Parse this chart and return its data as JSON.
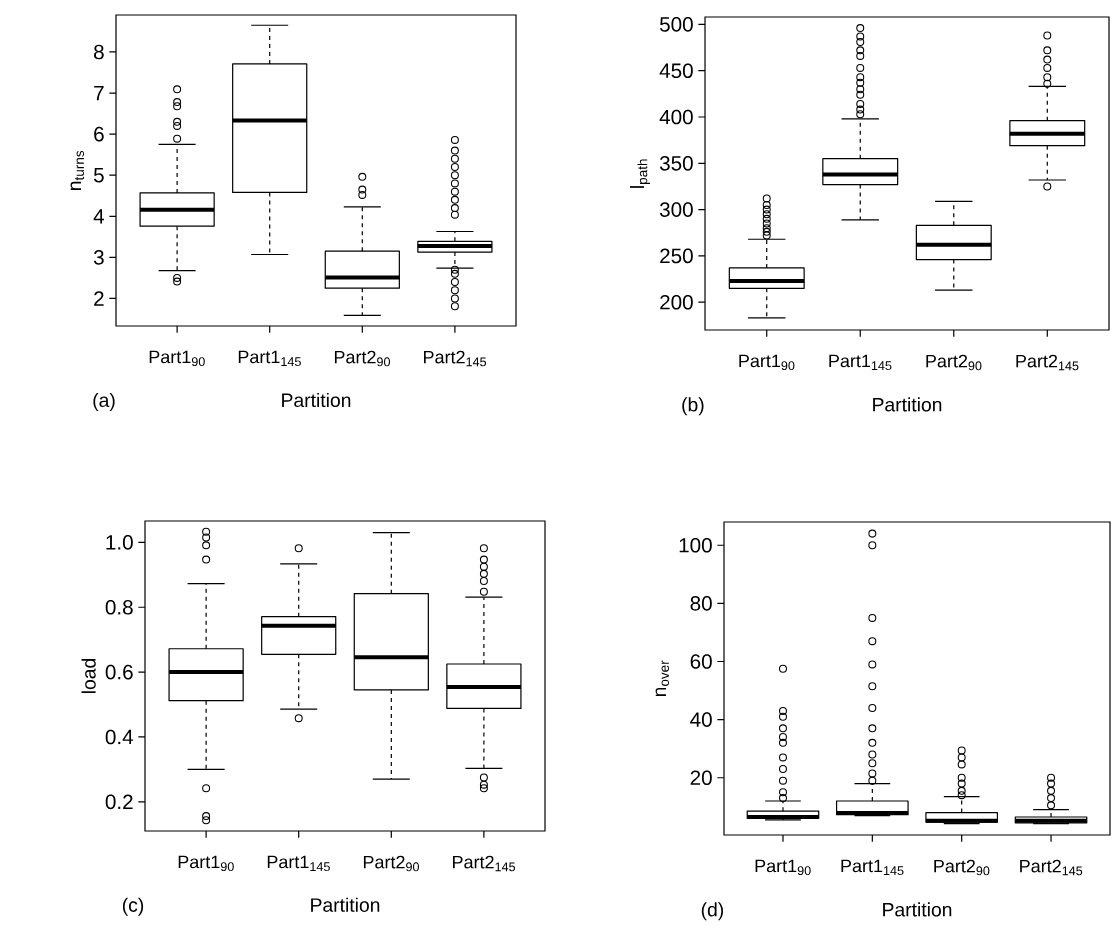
{
  "chart_data": [
    {
      "type": "box",
      "xlabel": "Partition",
      "ylabel": "n$_{turns}$",
      "annotations": [
        "(a)"
      ],
      "categories": [
        "Part1$_{90}$",
        "Part1$_{145}$",
        "Part2$_{90}$",
        "Part2$_{145}$"
      ],
      "ylim": [
        1.33,
        8.9
      ],
      "yticks": [
        2,
        3,
        4,
        5,
        6,
        7,
        8
      ],
      "boxes": [
        {
          "low": 2.68,
          "q1": 3.76,
          "median": 4.16,
          "q3": 4.57,
          "high": 5.75,
          "outliers": [
            7.09,
            6.78,
            6.68,
            6.3,
            6.2,
            5.89,
            2.5,
            2.41
          ]
        },
        {
          "low": 3.07,
          "q1": 4.58,
          "median": 6.33,
          "q3": 7.71,
          "high": 8.65
        },
        {
          "low": 1.59,
          "q1": 2.25,
          "median": 2.51,
          "q3": 3.15,
          "high": 4.23,
          "outliers": [
            4.96,
            4.65,
            4.52
          ]
        },
        {
          "low": 2.74,
          "q1": 3.13,
          "median": 3.28,
          "q3": 3.39,
          "high": 3.63,
          "outliers": [
            4.04,
            4.2,
            4.4,
            4.6,
            4.8,
            5.0,
            5.2,
            5.4,
            5.6,
            5.86,
            2.7,
            2.6,
            2.4,
            2.2,
            2.0,
            1.81
          ]
        }
      ]
    },
    {
      "type": "box",
      "xlabel": "Partition",
      "ylabel": "l$_{path}$",
      "annotations": [
        "(b)"
      ],
      "categories": [
        "Part1$_{90}$",
        "Part1$_{145}$",
        "Part2$_{90}$",
        "Part2$_{145}$"
      ],
      "ylim": [
        170,
        508
      ],
      "yticks": [
        200,
        250,
        300,
        350,
        400,
        450,
        500
      ],
      "boxes": [
        {
          "low": 183,
          "q1": 215,
          "median": 223,
          "q3": 237,
          "high": 268,
          "outliers": [
            272,
            276,
            280,
            285,
            290,
            295,
            300,
            305,
            312
          ]
        },
        {
          "low": 289,
          "q1": 327,
          "median": 338,
          "q3": 355,
          "high": 398,
          "outliers": [
            496,
            487,
            481,
            472,
            466,
            453,
            443,
            437,
            430,
            424,
            414,
            408,
            403
          ]
        },
        {
          "low": 213,
          "q1": 246,
          "median": 262,
          "q3": 283,
          "high": 309
        },
        {
          "low": 332,
          "q1": 369,
          "median": 382,
          "q3": 396,
          "high": 433,
          "outliers": [
            488,
            472,
            462,
            453,
            443,
            436,
            325
          ]
        }
      ]
    },
    {
      "type": "box",
      "xlabel": "Partition",
      "ylabel": "load",
      "annotations": [
        "(c)"
      ],
      "categories": [
        "Part1$_{90}$",
        "Part1$_{145}$",
        "Part2$_{90}$",
        "Part2$_{145}$"
      ],
      "ylim": [
        0.11,
        1.066
      ],
      "yticks": [
        0.2,
        0.4,
        0.6,
        0.8,
        {
          "value": 1.0,
          "label": "1.0"
        }
      ],
      "boxes": [
        {
          "low": 0.3,
          "q1": 0.512,
          "median": 0.6,
          "q3": 0.672,
          "high": 0.873,
          "outliers": [
            1.033,
            1.015,
            0.991,
            0.947,
            0.242,
            0.156,
            0.143
          ]
        },
        {
          "low": 0.486,
          "q1": 0.655,
          "median": 0.743,
          "q3": 0.771,
          "high": 0.934,
          "outliers": [
            0.982,
            0.458
          ]
        },
        {
          "low": 0.27,
          "q1": 0.545,
          "median": 0.646,
          "q3": 0.842,
          "high": 1.03
        },
        {
          "low": 0.303,
          "q1": 0.488,
          "median": 0.554,
          "q3": 0.625,
          "high": 0.831,
          "outliers": [
            0.982,
            0.947,
            0.925,
            0.903,
            0.881,
            0.848,
            0.275,
            0.253,
            0.242
          ]
        }
      ]
    },
    {
      "type": "box",
      "xlabel": "Partition",
      "ylabel": "n$_{over}$",
      "annotations": [
        "(d)"
      ],
      "categories": [
        "Part1$_{90}$",
        "Part1$_{145}$",
        "Part2$_{90}$",
        "Part2$_{145}$"
      ],
      "ylim": [
        0.3,
        108
      ],
      "yticks": [
        20,
        40,
        60,
        80,
        100
      ],
      "boxes": [
        {
          "low": 5.5,
          "q1": 6.1,
          "median": 6.5,
          "q3": 8.5,
          "high": 12,
          "outliers": [
            57.5,
            43,
            41,
            37,
            34,
            32,
            27,
            23,
            19,
            15,
            13
          ]
        },
        {
          "low": 7,
          "q1": 7.3,
          "median": 7.9,
          "q3": 12,
          "high": 18,
          "outliers": [
            104,
            100,
            75,
            67,
            59,
            51.5,
            44,
            37,
            32,
            28,
            25,
            21.5,
            19
          ]
        },
        {
          "low": 4.2,
          "q1": 4.7,
          "median": 5.2,
          "q3": 8,
          "high": 13.5,
          "outliers": [
            29.4,
            27,
            24.6,
            20,
            18,
            15.5,
            14
          ]
        },
        {
          "low": 4.2,
          "q1": 4.5,
          "median": 5.2,
          "q3": 6.5,
          "high": 9,
          "outliers": [
            20,
            18,
            15.5,
            13,
            10.5
          ]
        }
      ]
    }
  ]
}
